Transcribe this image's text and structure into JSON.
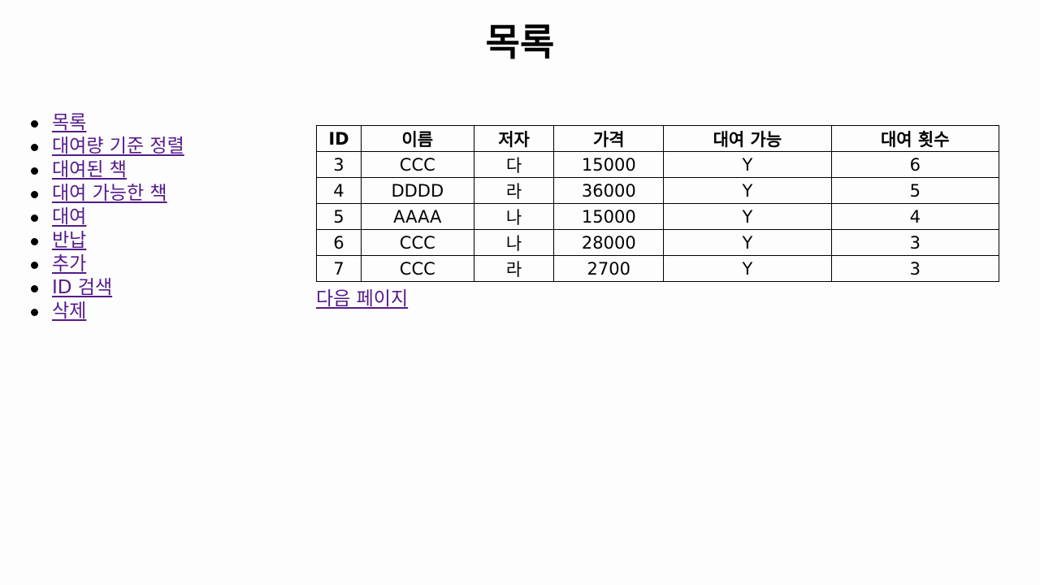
{
  "page": {
    "title": "목록"
  },
  "nav": {
    "items": [
      {
        "label": "목록"
      },
      {
        "label": "대여량 기준 정렬"
      },
      {
        "label": "대여된 책"
      },
      {
        "label": "대여 가능한 책"
      },
      {
        "label": "대여"
      },
      {
        "label": "반납"
      },
      {
        "label": "추가"
      },
      {
        "label": "ID 검색"
      },
      {
        "label": "삭제"
      }
    ]
  },
  "table": {
    "headers": {
      "id": "ID",
      "name": "이름",
      "author": "저자",
      "price": "가격",
      "available": "대여 가능",
      "rent_count": "대여 횟수"
    },
    "rows": [
      {
        "id": "3",
        "name": "CCC",
        "author": "다",
        "price": "15000",
        "available": "Y",
        "rent_count": "6"
      },
      {
        "id": "4",
        "name": "DDDD",
        "author": "라",
        "price": "36000",
        "available": "Y",
        "rent_count": "5"
      },
      {
        "id": "5",
        "name": "AAAA",
        "author": "나",
        "price": "15000",
        "available": "Y",
        "rent_count": "4"
      },
      {
        "id": "6",
        "name": "CCC",
        "author": "나",
        "price": "28000",
        "available": "Y",
        "rent_count": "3"
      },
      {
        "id": "7",
        "name": "CCC",
        "author": "라",
        "price": "2700",
        "available": "Y",
        "rent_count": "3"
      }
    ]
  },
  "pagination": {
    "next_label": "다음 페이지"
  },
  "colors": {
    "link": "#551a8b",
    "background": "#fdfdfd"
  }
}
